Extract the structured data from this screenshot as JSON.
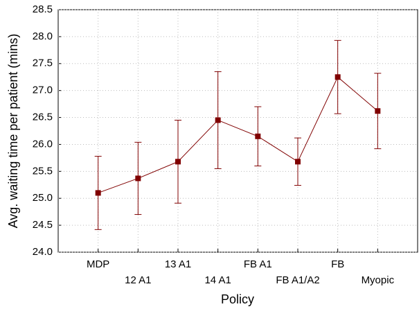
{
  "chart_data": {
    "type": "line",
    "x_label": "Policy",
    "y_label": "Avg. waiting time per patient (mins)",
    "categories": [
      "MDP",
      "12 A1",
      "13 A1",
      "14 A1",
      "FB A1",
      "FB A1/A2",
      "FB",
      "Myopic"
    ],
    "values": [
      25.1,
      25.37,
      25.68,
      26.45,
      26.15,
      25.68,
      27.25,
      26.62
    ],
    "errors": [
      0.68,
      0.67,
      0.77,
      0.9,
      0.55,
      0.44,
      0.68,
      0.7
    ],
    "color": "#800000",
    "ylim": [
      24.0,
      28.5
    ],
    "yticks": [
      {
        "value": 24.0,
        "label": "24.0"
      },
      {
        "value": 24.5,
        "label": "24.5"
      },
      {
        "value": 25.0,
        "label": "25.0"
      },
      {
        "value": 25.5,
        "label": "25.5"
      },
      {
        "value": 26.0,
        "label": "26.0"
      },
      {
        "value": 26.5,
        "label": "26.5"
      },
      {
        "value": 27.0,
        "label": "27.0"
      },
      {
        "value": 27.5,
        "label": "27.5"
      },
      {
        "value": 28.0,
        "label": "28.0"
      },
      {
        "value": 28.5,
        "label": "28.5"
      }
    ],
    "grid": true
  }
}
